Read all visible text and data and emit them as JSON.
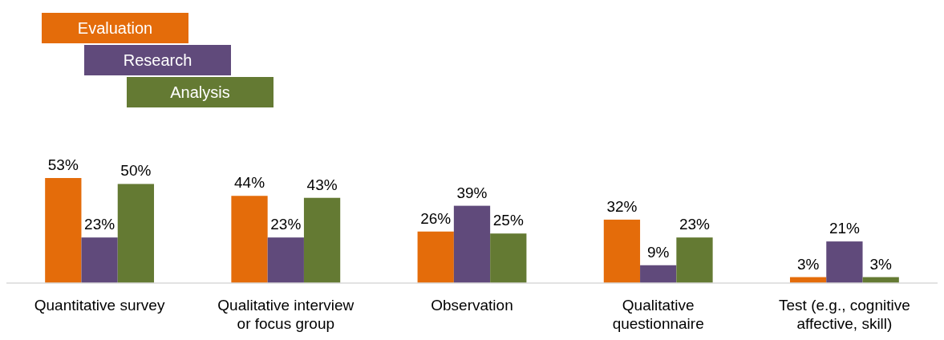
{
  "chart_data": {
    "type": "bar",
    "categories": [
      "Quantitative survey",
      "Qualitative interview or focus group",
      "Observation",
      "Qualitative questionnaire",
      "Test (e.g., cognitive affective, skill)"
    ],
    "legend": "top left",
    "series": [
      {
        "name": "Evaluation",
        "color": "#e46c0a",
        "values": [
          53,
          44,
          26,
          32,
          3
        ],
        "value_labels": [
          "53%",
          "44%",
          "26%",
          "32%",
          "3%"
        ]
      },
      {
        "name": "Research",
        "color": "#604a7b",
        "values": [
          23,
          23,
          39,
          9,
          21
        ],
        "value_labels": [
          "23%",
          "23%",
          "39%",
          "9%",
          "21%"
        ]
      },
      {
        "name": "Analysis",
        "color": "#647a33",
        "values": [
          50,
          43,
          25,
          23,
          3
        ],
        "value_labels": [
          "50%",
          "43%",
          "25%",
          "23%",
          "3%"
        ]
      }
    ]
  }
}
